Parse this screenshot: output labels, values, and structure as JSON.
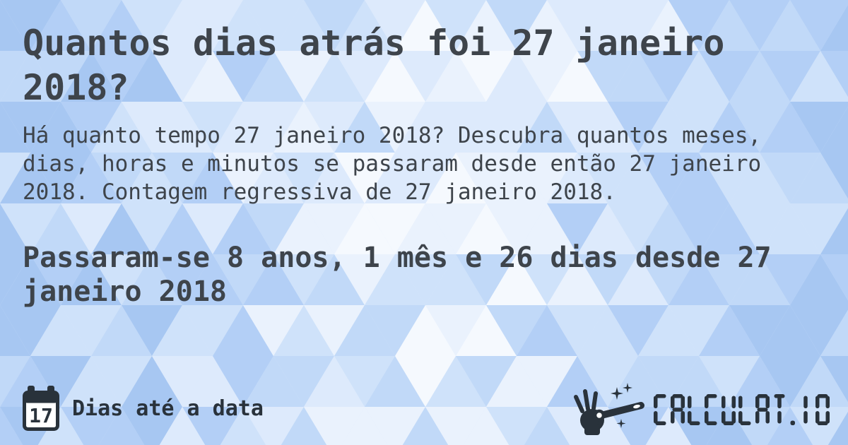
{
  "page": {
    "title": "Quantos dias atrás foi 27 janeiro 2018?",
    "description": "Há quanto tempo 27 janeiro 2018? Descubra quantos meses, dias, horas e minutos se passaram desde então 27 janeiro 2018. Contagem regressiva de 27 janeiro 2018.",
    "answer": "Passaram-se 8 anos, 1 mês e 26 dias desde 27 janeiro 2018"
  },
  "footer": {
    "category_label": "Dias até a data",
    "calendar_day": "17",
    "brand": "CALCULAT.IO",
    "icons": [
      "calendar-icon",
      "magic-wand-hand-icon"
    ]
  },
  "colors": {
    "text": "#3e444b",
    "ink": "#29323b",
    "background_palette": [
      "#ffffff",
      "#f5f9fe",
      "#eaf2fd",
      "#ddeafc",
      "#cfe2fa",
      "#c1d9f8",
      "#b3cff6",
      "#a7c7f2"
    ]
  }
}
